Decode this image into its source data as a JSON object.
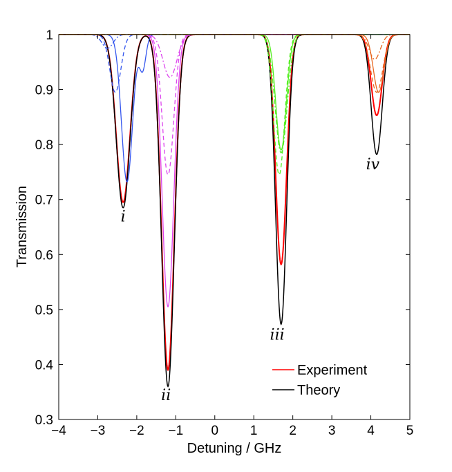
{
  "chart_data": {
    "type": "line",
    "title": "",
    "xlabel": "Detuning / GHz",
    "ylabel": "Transmission",
    "xlim": [
      -4,
      5
    ],
    "ylim": [
      0.3,
      1
    ],
    "xticks": [
      -4,
      -3,
      -2,
      -1,
      0,
      1,
      2,
      3,
      4,
      5
    ],
    "xtick_labels": [
      "−4",
      "−3",
      "−2",
      "−1",
      "0",
      "1",
      "2",
      "3",
      "4",
      "5"
    ],
    "yticks": [
      0.3,
      0.4,
      0.5,
      0.6,
      0.7,
      0.8,
      0.9,
      1
    ],
    "ytick_labels": [
      "0.3",
      "0.4",
      "0.5",
      "0.6",
      "0.7",
      "0.8",
      "0.9",
      "1"
    ],
    "grid": false,
    "legend_position": "bottom-right",
    "legend": [
      {
        "label": "Experiment",
        "color": "#ff0000"
      },
      {
        "label": "Theory",
        "color": "#000000"
      }
    ],
    "annotations": [
      {
        "text": "i",
        "x": -2.35,
        "y": 0.66
      },
      {
        "text": "ii",
        "x": -1.25,
        "y": 0.335
      },
      {
        "text": "iii",
        "x": 1.6,
        "y": 0.445
      },
      {
        "text": "iv",
        "x": 4.05,
        "y": 0.755
      }
    ],
    "series": [
      {
        "name": "Experiment",
        "color": "#ff0000",
        "style": "solid",
        "width": 2,
        "dips": [
          {
            "center": -2.35,
            "depth": 0.305,
            "width": 0.25
          },
          {
            "center": -1.2,
            "depth": 0.61,
            "width": 0.23
          },
          {
            "center": 1.7,
            "depth": 0.418,
            "width": 0.2
          },
          {
            "center": 4.15,
            "depth": 0.147,
            "width": 0.2
          }
        ]
      },
      {
        "name": "Theory",
        "color": "#000000",
        "style": "solid",
        "width": 1.5,
        "dips": [
          {
            "center": -2.35,
            "depth": 0.315,
            "width": 0.25
          },
          {
            "center": -1.2,
            "depth": 0.64,
            "width": 0.23
          },
          {
            "center": 1.7,
            "depth": 0.527,
            "width": 0.2
          },
          {
            "center": 4.15,
            "depth": 0.218,
            "width": 0.2
          }
        ]
      },
      {
        "name": "Blue component",
        "color": "#3355ee",
        "style": "solid",
        "width": 1.3,
        "dips": [
          {
            "center": -2.25,
            "depth": 0.268,
            "width": 0.2
          },
          {
            "center": -1.85,
            "depth": 0.063,
            "width": 0.12
          }
        ]
      },
      {
        "name": "Blue dashed",
        "color": "#3355ee",
        "style": "dashed",
        "width": 1.3,
        "dips": [
          {
            "center": -2.55,
            "depth": 0.105,
            "width": 0.2
          }
        ]
      },
      {
        "name": "Blue dash-dot",
        "color": "#3355ee",
        "style": "dashdot",
        "width": 1.3,
        "dips": [
          {
            "center": -2.75,
            "depth": 0.025,
            "width": 0.2
          }
        ]
      },
      {
        "name": "Magenta component",
        "color": "#dd44ee",
        "style": "solid",
        "width": 1.3,
        "dips": [
          {
            "center": -1.2,
            "depth": 0.495,
            "width": 0.21
          }
        ]
      },
      {
        "name": "Magenta dashed",
        "color": "#dd44ee",
        "style": "dashed",
        "width": 1.3,
        "dips": [
          {
            "center": -1.2,
            "depth": 0.255,
            "width": 0.21
          }
        ]
      },
      {
        "name": "Magenta dash-dot",
        "color": "#dd44ee",
        "style": "dashdot",
        "width": 1.3,
        "dips": [
          {
            "center": -1.15,
            "depth": 0.078,
            "width": 0.25
          }
        ]
      },
      {
        "name": "Green component",
        "color": "#55ee22",
        "style": "solid",
        "width": 1.3,
        "dips": [
          {
            "center": 1.7,
            "depth": 0.21,
            "width": 0.19
          }
        ]
      },
      {
        "name": "Green dashed",
        "color": "#55ee22",
        "style": "dashed",
        "width": 1.3,
        "dips": [
          {
            "center": 1.65,
            "depth": 0.255,
            "width": 0.2
          }
        ]
      },
      {
        "name": "Green dash-dot",
        "color": "#55ee22",
        "style": "dashdot",
        "width": 1.3,
        "dips": [
          {
            "center": 1.7,
            "depth": 0.215,
            "width": 0.22
          }
        ]
      },
      {
        "name": "Orange component",
        "color": "#e8661e",
        "style": "solid",
        "width": 1.3,
        "dips": [
          {
            "center": 4.2,
            "depth": 0.105,
            "width": 0.19
          }
        ]
      },
      {
        "name": "Orange dashed",
        "color": "#e8661e",
        "style": "dashed",
        "width": 1.3,
        "dips": [
          {
            "center": 4.15,
            "depth": 0.105,
            "width": 0.22
          }
        ]
      },
      {
        "name": "Orange dash-dot",
        "color": "#e8661e",
        "style": "dashdot",
        "width": 1.3,
        "dips": [
          {
            "center": 4.1,
            "depth": 0.045,
            "width": 0.2
          }
        ]
      }
    ]
  }
}
